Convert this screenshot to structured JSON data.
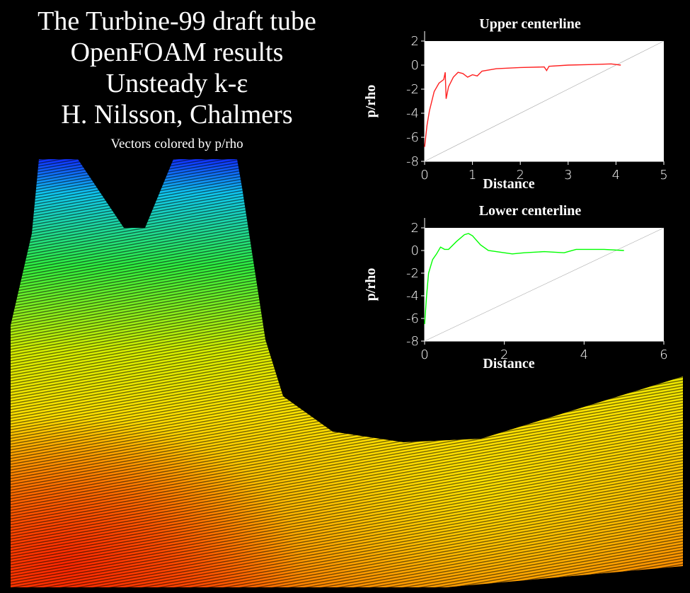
{
  "title_lines": [
    "The Turbine-99 draft tube",
    "OpenFOAM results",
    "Unsteady k-ε",
    "H. Nilsson, Chalmers"
  ],
  "subtitle": "Vectors colored by p/rho",
  "chart_data": [
    {
      "type": "line",
      "title": "Upper centerline",
      "xlabel": "Distance",
      "ylabel": "p/rho",
      "xlim": [
        0,
        5
      ],
      "ylim": [
        -8,
        2
      ],
      "xticks": [
        0,
        1,
        2,
        3,
        4,
        5
      ],
      "yticks": [
        -8,
        -6,
        -4,
        -2,
        0,
        2
      ],
      "x": [
        0,
        0.05,
        0.1,
        0.2,
        0.3,
        0.4,
        0.43,
        0.45,
        0.5,
        0.6,
        0.7,
        0.8,
        0.9,
        1.0,
        1.1,
        1.2,
        1.5,
        2,
        2.5,
        2.55,
        2.6,
        3,
        3.5,
        3.9,
        4.1
      ],
      "series": [
        {
          "color": "#ff2020",
          "values": [
            -6.8,
            -5,
            -3.8,
            -2.2,
            -1.5,
            -1.2,
            -0.6,
            -2.8,
            -1.8,
            -1,
            -0.6,
            -0.7,
            -1,
            -0.8,
            -0.9,
            -0.5,
            -0.3,
            -0.2,
            -0.15,
            -0.45,
            -0.1,
            0,
            0.05,
            0.1,
            0
          ]
        }
      ]
    },
    {
      "type": "line",
      "title": "Lower centerline",
      "xlabel": "Distance",
      "ylabel": "p/rho",
      "xlim": [
        0,
        6
      ],
      "ylim": [
        -8,
        2
      ],
      "xticks": [
        0,
        2,
        4,
        6
      ],
      "yticks": [
        -8,
        -6,
        -4,
        -2,
        0,
        2
      ],
      "x": [
        0,
        0.05,
        0.1,
        0.2,
        0.3,
        0.4,
        0.5,
        0.6,
        0.8,
        1.0,
        1.1,
        1.2,
        1.4,
        1.6,
        2,
        2.2,
        2.5,
        3,
        3.5,
        3.6,
        3.8,
        4,
        4.5,
        5
      ],
      "series": [
        {
          "color": "#00ff00",
          "values": [
            -6.5,
            -4,
            -2,
            -0.8,
            -0.3,
            0.3,
            0.1,
            0.1,
            0.8,
            1.4,
            1.5,
            1.3,
            0.5,
            0,
            -0.2,
            -0.3,
            -0.2,
            -0.1,
            -0.2,
            -0.1,
            0.1,
            0.1,
            0.1,
            0
          ]
        }
      ]
    }
  ]
}
